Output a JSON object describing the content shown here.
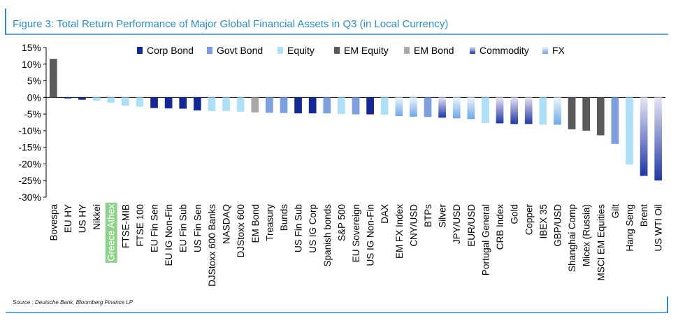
{
  "title": "Figure 3: Total Return Performance of Major Global Financial Assets in Q3 (in Local Currency)",
  "source": "Source : Deutsche Bank, Bloomberg Finance LP",
  "colors": {
    "accent": "#2a8bd2",
    "Corp Bond": "#13299a",
    "Govt Bond": "#7d9fe0",
    "Equity": "#aee0f8",
    "EM Equity": "#5a5a5a",
    "EM Bond": "#a9a9a9",
    "Commodity_top": "#e6e6f2",
    "Commodity_bottom": "#1f37a8",
    "FX_top": "#eef6fd",
    "FX_bottom": "#6aa8e8",
    "highlight": "#8fd18a"
  },
  "chart_data": {
    "type": "bar",
    "ylim": [
      -30,
      15
    ],
    "yticks": [
      "15%",
      "10%",
      "5%",
      "0%",
      "-5%",
      "-10%",
      "-15%",
      "-20%",
      "-25%",
      "-30%"
    ],
    "ytick_values": [
      15,
      10,
      5,
      0,
      -5,
      -10,
      -15,
      -20,
      -25,
      -30
    ],
    "legend": [
      "Corp Bond",
      "Govt Bond",
      "Equity",
      "EM Equity",
      "EM Bond",
      "Commodity",
      "FX"
    ],
    "legend_position": "top",
    "highlighted_category": "Greece Athex",
    "categories": [
      "Bovespa",
      "EU HY",
      "US HY",
      "Nikkei",
      "Greece Athex",
      "FTSE-MIB",
      "FTSE 100",
      "EU Fin Sen",
      "EU IG Non-Fin",
      "EU Fin Sub",
      "US Fin Sen",
      "DJStoxx 600 Banks",
      "NASDAQ",
      "DJStoxx 600",
      "EM Bond",
      "Treasury",
      "Bunds",
      "US Fin Sub",
      "US IG Corp",
      "Spanish bonds",
      "S&P 500",
      "EU Sovereign",
      "US IG Non-Fin",
      "DAX",
      "EM FX Index",
      "CNY/USD",
      "BTPs",
      "Silver",
      "JPY/USD",
      "EUR/USD",
      "Portugal General",
      "CRB Index",
      "Gold",
      "Copper",
      "IBEX 35",
      "GBP/USD",
      "Shanghai Comp",
      "Micex (Russia)",
      "MSCI EM Equities",
      "Gilt",
      "Hang Seng",
      "Brent",
      "US WTI Oil"
    ],
    "asset_class": [
      "EM Equity",
      "Corp Bond",
      "Corp Bond",
      "Equity",
      "Equity",
      "Equity",
      "Equity",
      "Corp Bond",
      "Corp Bond",
      "Corp Bond",
      "Corp Bond",
      "Equity",
      "Equity",
      "Equity",
      "EM Bond",
      "Govt Bond",
      "Govt Bond",
      "Corp Bond",
      "Corp Bond",
      "Govt Bond",
      "Equity",
      "Govt Bond",
      "Corp Bond",
      "Equity",
      "FX",
      "FX",
      "Govt Bond",
      "Commodity",
      "FX",
      "FX",
      "Equity",
      "Commodity",
      "Commodity",
      "Commodity",
      "Equity",
      "FX",
      "EM Equity",
      "EM Equity",
      "EM Equity",
      "Govt Bond",
      "Equity",
      "Commodity",
      "Commodity"
    ],
    "values": [
      11.6,
      -0.3,
      -0.7,
      -1.0,
      -1.6,
      -2.5,
      -2.8,
      -3.2,
      -3.3,
      -3.4,
      -3.9,
      -4.1,
      -4.1,
      -4.3,
      -4.5,
      -4.6,
      -4.7,
      -4.8,
      -4.8,
      -4.8,
      -5.0,
      -5.1,
      -5.1,
      -5.2,
      -5.6,
      -5.8,
      -5.9,
      -6.1,
      -6.3,
      -6.5,
      -7.7,
      -7.8,
      -8.0,
      -8.0,
      -8.2,
      -8.2,
      -9.6,
      -10.0,
      -11.4,
      -14.0,
      -20.2,
      -23.6,
      -25.0
    ]
  }
}
